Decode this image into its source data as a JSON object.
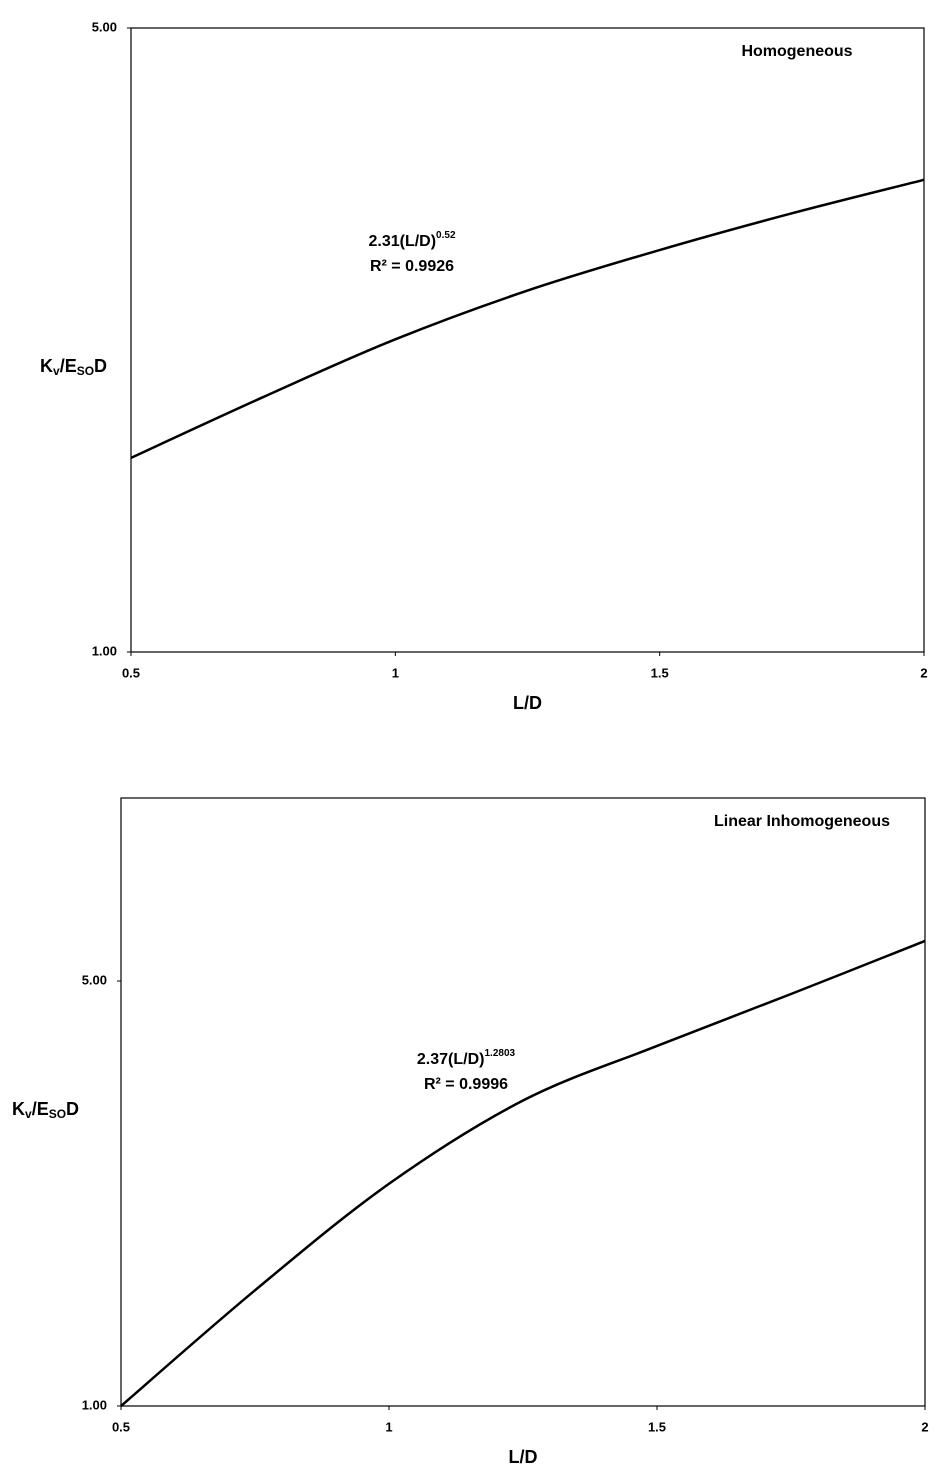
{
  "chart_data": [
    {
      "type": "line",
      "log_y": true,
      "panel_label": "Homogeneous",
      "annotation": {
        "base": "2.31(L/D)",
        "exponent": "0.52"
      },
      "r_squared": "R² = 0.9926",
      "x_label": "L/D",
      "y_label": [
        "K",
        "v",
        "/E",
        "SO",
        "D"
      ],
      "x": [
        0.5,
        0.75,
        1,
        1.25,
        1.5,
        1.75,
        2
      ],
      "series": [
        {
          "color": "#000000",
          "values": [
            1.65,
            1.93,
            2.24,
            2.54,
            2.82,
            3.1,
            3.38
          ]
        }
      ],
      "xlim": [
        0.5,
        2
      ],
      "xticks": [
        0.5,
        1,
        1.5,
        2
      ],
      "ylim": [
        1,
        5
      ],
      "yticks": [
        {
          "value": 1,
          "label": "1.00"
        },
        {
          "value": 5,
          "label": "5.00"
        }
      ]
    },
    {
      "type": "line",
      "log_y": true,
      "panel_label": "Linear Inhomogeneous",
      "annotation": {
        "base": "2.37(L/D)",
        "exponent": "1.2803"
      },
      "r_squared": "R² = 0.9996",
      "x_label": "L/D",
      "y_label": [
        "K",
        "v",
        "/E",
        "SO",
        "D"
      ],
      "x": [
        0.5,
        0.75,
        1,
        1.25,
        1.5,
        1.75,
        2
      ],
      "series": [
        {
          "color": "#000000",
          "values": [
            1.0,
            1.55,
            2.32,
            3.18,
            3.91,
            4.76,
            5.82
          ]
        }
      ],
      "xlim": [
        0.5,
        2
      ],
      "xticks": [
        0.5,
        1,
        1.5,
        2
      ],
      "ylim": [
        1,
        10
      ],
      "yticks": [
        {
          "value": 1,
          "label": "1.00"
        },
        {
          "value": 5,
          "label": "5.00"
        }
      ]
    }
  ]
}
